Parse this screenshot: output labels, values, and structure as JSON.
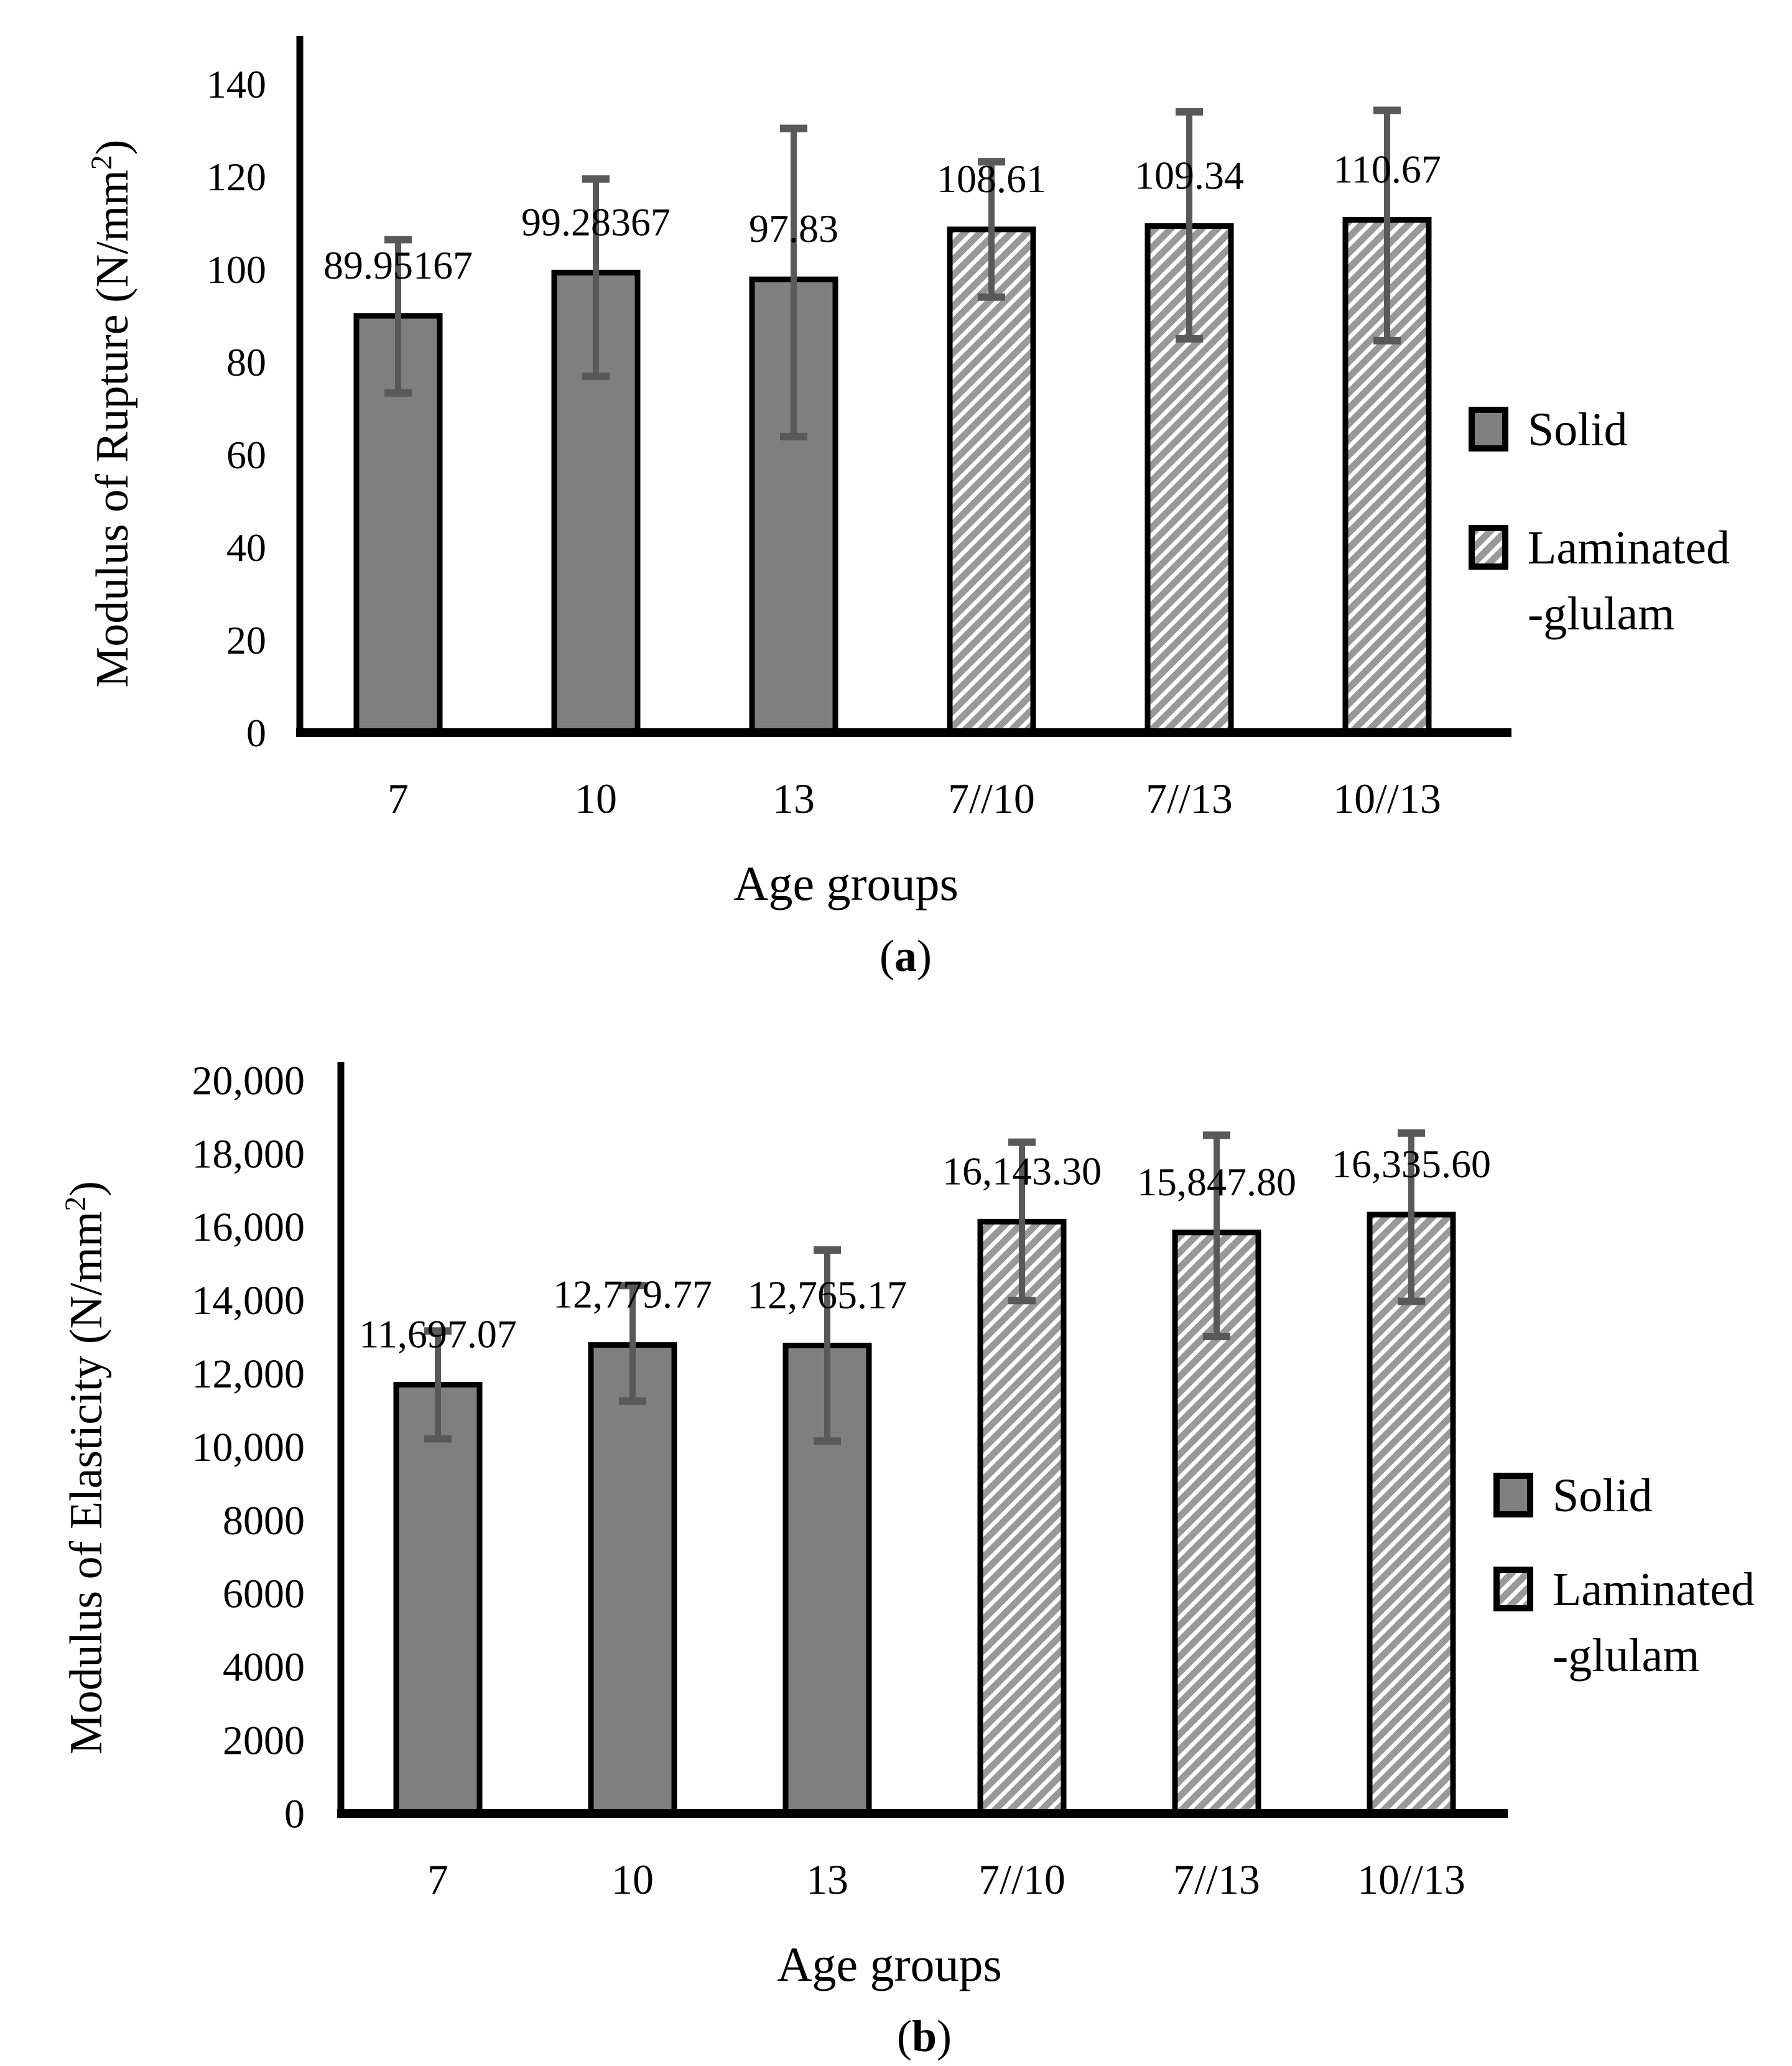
{
  "page": {
    "background": "#ffffff"
  },
  "styles": {
    "bar_solid_fill": "#7f7f7f",
    "bar_stroke": "#000000",
    "hatch_stripe_color": "#999999",
    "hatch_background": "#ffffff",
    "error_bar_color": "#595959",
    "axis_color": "#000000",
    "text_color": "#000000"
  },
  "legend": {
    "solid_label": "Solid",
    "laminated_line1": "Laminated",
    "laminated_line2": "-glulam"
  },
  "chart_data": [
    {
      "id": "chart-a",
      "type": "bar",
      "title": "",
      "xlabel": "Age groups",
      "ylabel": {
        "prefix": "Modulus of Rupture (N/mm",
        "sup": "2",
        "suffix": ")"
      },
      "caption": {
        "open": "(",
        "letter": "a",
        "close": ")"
      },
      "categories": [
        "7",
        "10",
        "13",
        "7//10",
        "7//13",
        "10//13"
      ],
      "groups": [
        "solid",
        "solid",
        "solid",
        "laminated",
        "laminated",
        "laminated"
      ],
      "series": [
        {
          "name": "Solid",
          "swatch": "solid"
        },
        {
          "name": "Laminated-glulam",
          "swatch": "laminated"
        }
      ],
      "values": [
        89.95167,
        99.28367,
        97.83,
        108.61,
        109.34,
        110.67
      ],
      "value_labels": [
        "89.95167",
        "99.28367",
        "97.83",
        "108.61",
        "109.34",
        "110.67"
      ],
      "error_low": [
        73.3,
        76.9,
        63.9,
        94.0,
        85.0,
        84.6
      ],
      "error_high": [
        106.4,
        119.5,
        130.4,
        123.2,
        134.0,
        134.3
      ],
      "ylim": [
        0,
        150
      ],
      "yticks": [
        0,
        20,
        40,
        60,
        80,
        100,
        120,
        140
      ],
      "ytick_labels": [
        "0",
        "20",
        "40",
        "60",
        "80",
        "100",
        "120",
        "140"
      ],
      "grid": false,
      "legend_position": "right-middle"
    },
    {
      "id": "chart-b",
      "type": "bar",
      "title": "",
      "xlabel": "Age groups",
      "ylabel": {
        "prefix": "Modulus of Elasticity (N/mm",
        "sup": "2",
        "suffix": ")"
      },
      "caption": {
        "open": "(",
        "letter": "b",
        "close": ")"
      },
      "categories": [
        "7",
        "10",
        "13",
        "7//10",
        "7//13",
        "10//13"
      ],
      "groups": [
        "solid",
        "solid",
        "solid",
        "laminated",
        "laminated",
        "laminated"
      ],
      "series": [
        {
          "name": "Solid",
          "swatch": "solid"
        },
        {
          "name": "Laminated-glulam",
          "swatch": "laminated"
        }
      ],
      "values": [
        11697.07,
        12779.77,
        12765.17,
        16143.3,
        15847.8,
        16335.6
      ],
      "value_labels": [
        "11,697.07",
        "12,779.77",
        "12,765.17",
        "16,143.30",
        "15,847.80",
        "16,335.60"
      ],
      "error_low": [
        10220,
        11250,
        10160,
        13990,
        13010,
        13970
      ],
      "error_high": [
        13160,
        14400,
        15370,
        18310,
        18500,
        18560
      ],
      "ylim": [
        0,
        20000
      ],
      "yticks": [
        0,
        2000,
        4000,
        6000,
        8000,
        10000,
        12000,
        14000,
        16000,
        18000,
        20000
      ],
      "ytick_labels": [
        "0",
        "2000",
        "4000",
        "6000",
        "8000",
        "10,000",
        "12,000",
        "14,000",
        "16,000",
        "18,000",
        "20,000"
      ],
      "grid": false,
      "legend_position": "right-middle"
    }
  ]
}
